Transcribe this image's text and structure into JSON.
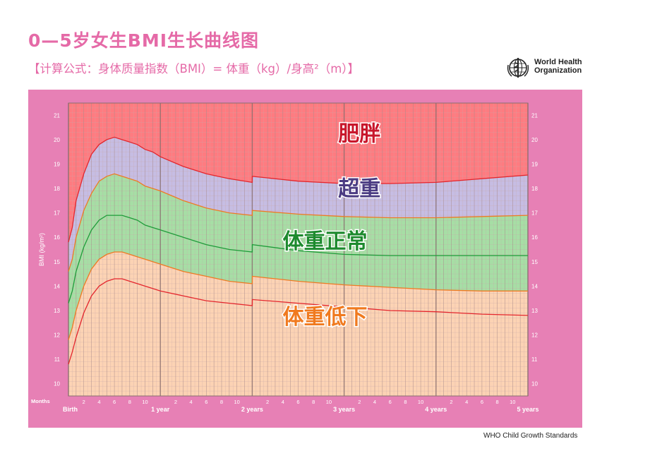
{
  "header": {
    "title": "0—5岁女生BMI生长曲线图",
    "subtitle": "【计算公式：身体质量指数（BMI）= 体重（kg）/身高²（m）】"
  },
  "logo": {
    "icon": "who-emblem-icon",
    "line1": "World Health",
    "line2": "Organization"
  },
  "footer": {
    "text": "WHO Child Growth Standards"
  },
  "colors": {
    "frame": "#e780b5",
    "obese": "#ff7b80",
    "overweight": "#c6bde3",
    "normal": "#a6dea5",
    "under": "#fcd3b4",
    "line_red": "#e4262d",
    "line_orange": "#ef7a23",
    "line_green": "#1f9c3a",
    "grid": "#c9a8a8"
  },
  "chart_data": {
    "type": "line",
    "title": "",
    "xlabel": "Months",
    "ylabel": "BMI (kg/m²)",
    "xlim": [
      0,
      60
    ],
    "ylim": [
      9.5,
      21.5
    ],
    "y_ticks": [
      10,
      11,
      12,
      13,
      14,
      15,
      16,
      17,
      18,
      19,
      20,
      21
    ],
    "x_major_labels": [
      {
        "month": 0,
        "label": "Birth"
      },
      {
        "month": 12,
        "label": "1 year"
      },
      {
        "month": 24,
        "label": "2 years"
      },
      {
        "month": 36,
        "label": "3 years"
      },
      {
        "month": 48,
        "label": "4 years"
      },
      {
        "month": 60,
        "label": "5 years"
      }
    ],
    "x_minor_labels": [
      "2",
      "4",
      "6",
      "8",
      "10"
    ],
    "x_months": [
      0,
      0.5,
      1,
      2,
      3,
      4,
      5,
      6,
      7,
      8,
      9,
      10,
      11,
      12,
      15,
      18,
      21,
      24,
      24.01,
      30,
      36,
      42,
      48,
      54,
      60
    ],
    "series": [
      {
        "name": "",
        "color_key": "line_red",
        "values": [
          10.8,
          11.3,
          11.9,
          12.9,
          13.6,
          14.0,
          14.2,
          14.3,
          14.3,
          14.2,
          14.1,
          14.0,
          13.9,
          13.8,
          13.6,
          13.4,
          13.3,
          13.2,
          13.45,
          13.3,
          13.15,
          13.0,
          12.95,
          12.85,
          12.8
        ]
      },
      {
        "name": "",
        "color_key": "line_orange",
        "values": [
          11.8,
          12.3,
          13.0,
          14.0,
          14.7,
          15.1,
          15.3,
          15.4,
          15.4,
          15.3,
          15.2,
          15.1,
          15.0,
          14.9,
          14.6,
          14.4,
          14.2,
          14.1,
          14.4,
          14.2,
          14.05,
          13.95,
          13.85,
          13.8,
          13.8
        ]
      },
      {
        "name": "",
        "color_key": "line_green",
        "values": [
          13.3,
          13.8,
          14.6,
          15.6,
          16.3,
          16.7,
          16.9,
          16.9,
          16.9,
          16.8,
          16.7,
          16.5,
          16.4,
          16.3,
          16.0,
          15.7,
          15.5,
          15.4,
          15.7,
          15.45,
          15.3,
          15.25,
          15.25,
          15.25,
          15.25
        ]
      },
      {
        "name": "",
        "color_key": "line_orange",
        "values": [
          14.6,
          15.1,
          16.0,
          17.1,
          17.8,
          18.3,
          18.5,
          18.6,
          18.5,
          18.4,
          18.3,
          18.1,
          18.0,
          17.9,
          17.5,
          17.2,
          17.0,
          16.9,
          17.1,
          16.95,
          16.85,
          16.8,
          16.8,
          16.85,
          16.9
        ]
      },
      {
        "name": "",
        "color_key": "line_red",
        "values": [
          15.8,
          16.4,
          17.5,
          18.6,
          19.4,
          19.8,
          20.0,
          20.1,
          20.0,
          19.9,
          19.8,
          19.6,
          19.5,
          19.3,
          18.9,
          18.6,
          18.4,
          18.25,
          18.5,
          18.3,
          18.2,
          18.2,
          18.25,
          18.4,
          18.55
        ]
      }
    ],
    "zones": [
      {
        "label": "肥胖",
        "color_key": "obese",
        "text_color": "#c8162b",
        "x": 38,
        "y": 19.95
      },
      {
        "label": "超重",
        "color_key": "overweight",
        "text_color": "#4b3b82",
        "x": 38,
        "y": 17.7
      },
      {
        "label": "体重正常",
        "color_key": "normal",
        "text_color": "#1d8a2e",
        "x": 33.5,
        "y": 15.55
      },
      {
        "label": "体重低下",
        "color_key": "under",
        "text_color": "#f07a1f",
        "x": 33.5,
        "y": 12.45
      }
    ]
  }
}
